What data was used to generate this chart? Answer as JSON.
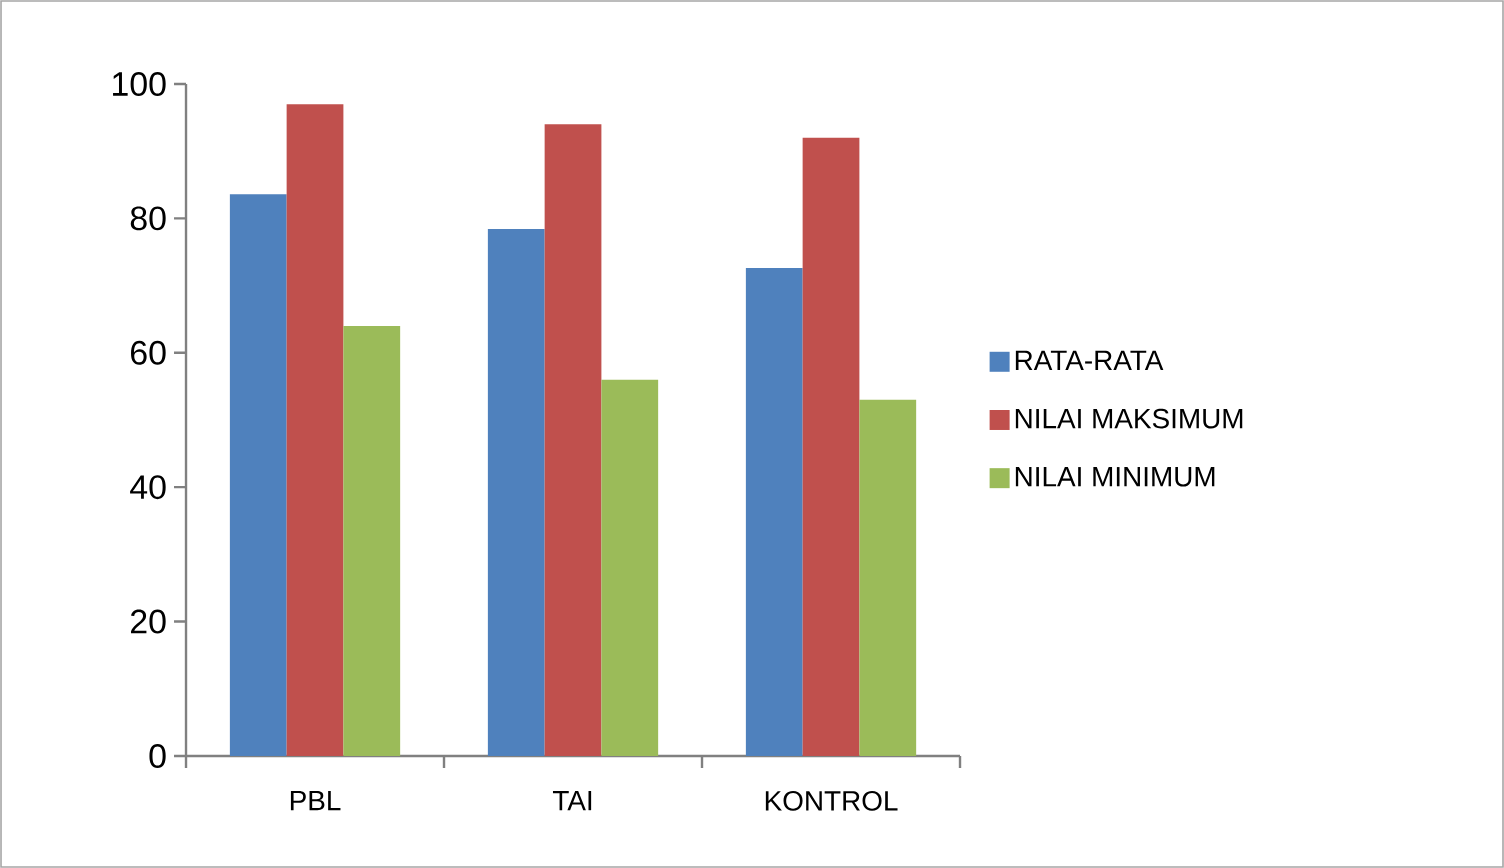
{
  "chart_data": {
    "type": "bar",
    "categories": [
      "PBL",
      "TAI",
      "KONTROL"
    ],
    "series": [
      {
        "name": "RATA-RATA",
        "color": "#4f81bd",
        "values": [
          83.6,
          78.4,
          72.6
        ]
      },
      {
        "name": "NILAI MAKSIMUM",
        "color": "#c0504d",
        "values": [
          97,
          94,
          92
        ]
      },
      {
        "name": "NILAI MINIMUM",
        "color": "#9bbb59",
        "values": [
          64,
          56,
          53
        ]
      }
    ],
    "ylim": [
      0,
      100
    ],
    "yticks": [
      0,
      20,
      40,
      60,
      80,
      100
    ],
    "grid": false,
    "legend": "right"
  }
}
